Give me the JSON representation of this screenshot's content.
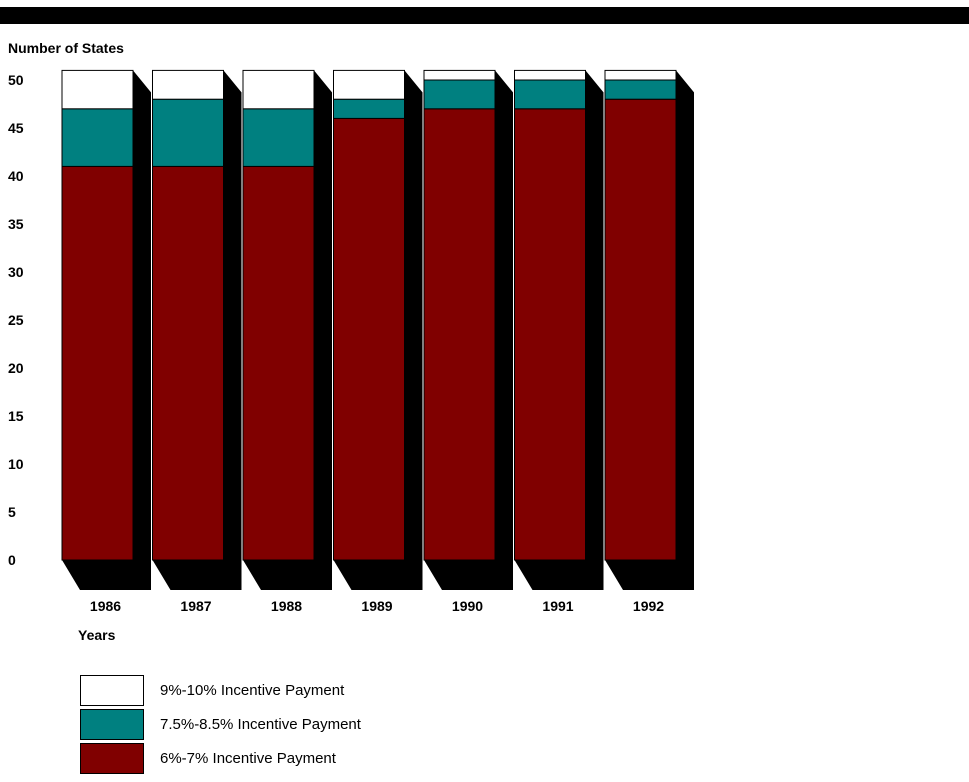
{
  "header_bar_color": "#000000",
  "chart_data": {
    "type": "bar",
    "stacked": true,
    "style": "3d",
    "title": "",
    "xlabel": "Years",
    "ylabel": "Number of States",
    "ylim": [
      0,
      50
    ],
    "yticks": [
      0,
      5,
      10,
      15,
      20,
      25,
      30,
      35,
      40,
      45,
      50
    ],
    "categories": [
      "1986",
      "1987",
      "1988",
      "1989",
      "1990",
      "1991",
      "1992"
    ],
    "series": [
      {
        "name": "6%-7% Incentive Payment",
        "color": "#800000",
        "values": [
          41,
          41,
          41,
          46,
          47,
          47,
          48
        ]
      },
      {
        "name": "7.5%-8.5% Incentive Payment",
        "color": "#008080",
        "values": [
          6,
          7,
          6,
          2,
          3,
          3,
          2
        ]
      },
      {
        "name": "9%-10% Incentive Payment",
        "color": "#ffffff",
        "values": [
          4,
          3,
          4,
          3,
          1,
          1,
          1
        ]
      }
    ],
    "legend": {
      "position": "bottom-left",
      "order": [
        "9%-10% Incentive Payment",
        "7.5%-8.5% Incentive Payment",
        "6%-7% Incentive Payment"
      ]
    }
  }
}
